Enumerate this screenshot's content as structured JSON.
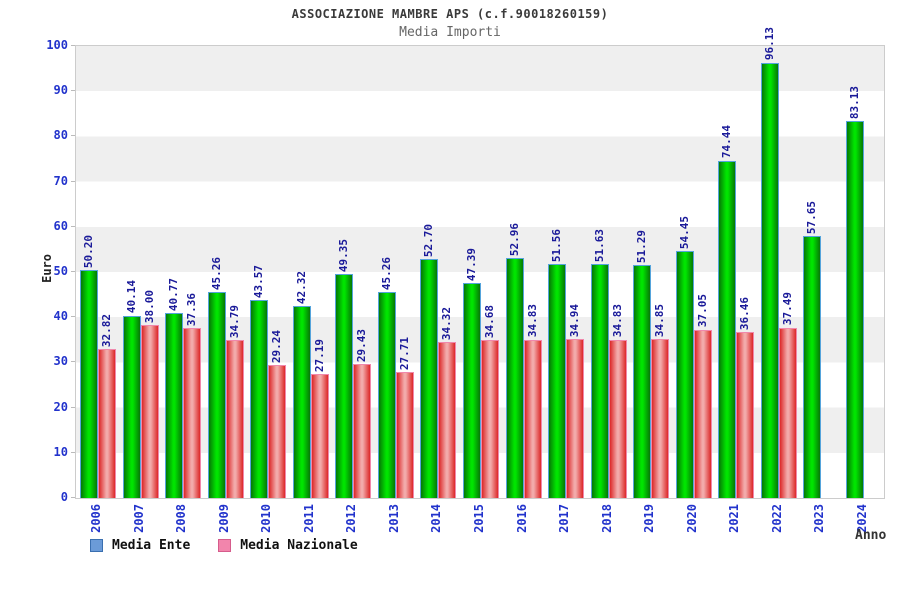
{
  "header": {
    "title": "ASSOCIAZIONE MAMBRE APS (c.f.90018260159)",
    "subtitle": "Media Importi"
  },
  "axes": {
    "y_title": "Euro",
    "x_title": "Anno"
  },
  "legend": {
    "position": "bottom-left",
    "items": [
      {
        "label": "Media Ente",
        "fill": "#6b9bd8",
        "border": "#3a6fb0"
      },
      {
        "label": "Media Nazionale",
        "fill": "#f285ac",
        "border": "#d65c8c"
      }
    ]
  },
  "chart_data": {
    "type": "bar",
    "title": "ASSOCIAZIONE MAMBRE APS (c.f.90018260159)",
    "subtitle": "Media Importi",
    "xlabel": "Anno",
    "ylabel": "Euro",
    "ylim": [
      0,
      100
    ],
    "y_tick_step": 10,
    "grid": "alternating horizontal gray/white bands every 10 units",
    "legend_position": "bottom-left",
    "value_labels": "rotated 90deg above each bar, two decimals",
    "categories": [
      "2006",
      "2007",
      "2008",
      "2009",
      "2010",
      "2011",
      "2012",
      "2013",
      "2014",
      "2015",
      "2016",
      "2017",
      "2018",
      "2019",
      "2020",
      "2021",
      "2022",
      "2023",
      "2024"
    ],
    "series": [
      {
        "name": "Media Ente",
        "values": [
          50.2,
          40.14,
          40.77,
          45.26,
          43.57,
          42.32,
          49.35,
          45.26,
          52.7,
          47.39,
          52.96,
          51.56,
          51.63,
          51.29,
          54.45,
          74.44,
          96.13,
          57.65,
          83.13
        ],
        "bar_colors": {
          "edge": "#067806",
          "center": "#00e400",
          "border": "#55a4dc"
        }
      },
      {
        "name": "Media Nazionale",
        "values": [
          32.82,
          38.0,
          37.36,
          34.79,
          29.24,
          27.19,
          29.43,
          27.71,
          34.32,
          34.68,
          34.83,
          34.94,
          34.83,
          34.85,
          37.05,
          36.46,
          37.49,
          null,
          null
        ],
        "bar_colors": {
          "edge": "#dc2828",
          "center": "#f2aaaa",
          "border": "#f088ac"
        }
      }
    ],
    "colors": {
      "value_label": "#1a1a99",
      "tick_label": "#2233cc",
      "band_gray": "#efefef",
      "plot_border": "#cccccc"
    }
  }
}
